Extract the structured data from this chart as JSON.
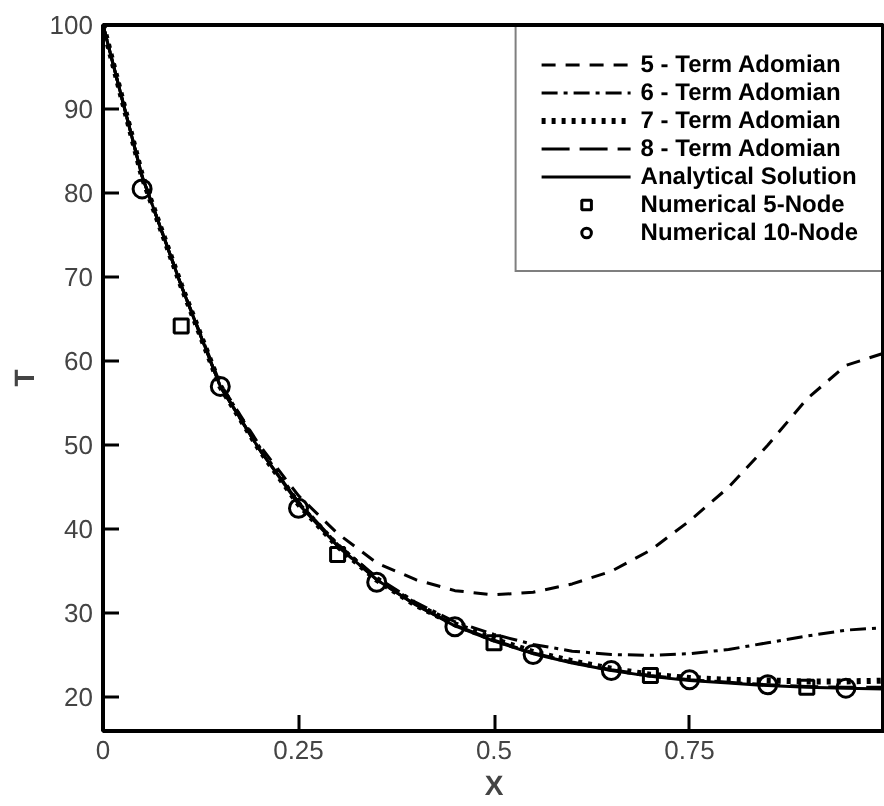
{
  "chart_data": {
    "type": "line",
    "xlabel": "X",
    "ylabel": "T",
    "xlim": [
      0,
      1
    ],
    "ylim": [
      16,
      100
    ],
    "xticks": [
      0,
      0.25,
      0.5,
      0.75
    ],
    "yticks": [
      20,
      30,
      40,
      50,
      60,
      70,
      80,
      90,
      100
    ],
    "grid": false,
    "legend": "top right",
    "series": [
      {
        "name": "5 - Term Adomian",
        "color": "#000000",
        "line_style": "dashed",
        "marker": "none",
        "x": [
          0,
          0.05,
          0.1,
          0.15,
          0.2,
          0.25,
          0.3,
          0.35,
          0.4,
          0.45,
          0.5,
          0.55,
          0.6,
          0.65,
          0.7,
          0.75,
          0.8,
          0.85,
          0.9,
          0.95,
          1
        ],
        "values": [
          100,
          82,
          69,
          57.3,
          50,
          44,
          39.5,
          36,
          34,
          32.7,
          32.2,
          32.5,
          33.5,
          35,
          37.5,
          41,
          45,
          50,
          55.5,
          59.5,
          61
        ]
      },
      {
        "name": "6 - Term Adomian",
        "color": "#000000",
        "line_style": "dashdot",
        "marker": "none",
        "x": [
          0,
          0.05,
          0.1,
          0.15,
          0.2,
          0.25,
          0.3,
          0.35,
          0.4,
          0.45,
          0.5,
          0.55,
          0.6,
          0.65,
          0.7,
          0.75,
          0.8,
          0.85,
          0.9,
          0.95,
          1
        ],
        "values": [
          100,
          82,
          69,
          57,
          49.5,
          43.2,
          38.2,
          34.3,
          31.3,
          29,
          27.5,
          26.3,
          25.5,
          25.1,
          25,
          25.2,
          25.7,
          26.5,
          27.3,
          28,
          28.3
        ]
      },
      {
        "name": "7 - Term Adomian",
        "color": "#000000",
        "line_style": "dotted",
        "marker": "none",
        "x": [
          0,
          0.05,
          0.1,
          0.15,
          0.2,
          0.25,
          0.3,
          0.35,
          0.4,
          0.45,
          0.5,
          0.55,
          0.6,
          0.65,
          0.7,
          0.75,
          0.8,
          0.85,
          0.9,
          0.95,
          1
        ],
        "values": [
          100,
          82,
          69,
          57,
          49.5,
          43,
          38,
          34,
          31,
          28.7,
          26.9,
          25.4,
          24.3,
          23.4,
          22.7,
          22.3,
          22.1,
          22,
          21.9,
          21.9,
          22
        ]
      },
      {
        "name": "8 - Term Adomian",
        "color": "#000000",
        "line_style": "longdash",
        "marker": "none",
        "x": [
          0,
          0.05,
          0.1,
          0.15,
          0.2,
          0.25,
          0.3,
          0.35,
          0.4,
          0.45,
          0.5,
          0.55,
          0.6,
          0.65,
          0.7,
          0.75,
          0.8,
          0.85,
          0.9,
          0.95,
          1
        ],
        "values": [
          100,
          82,
          69,
          57,
          49.5,
          43.2,
          38,
          34,
          31,
          28.6,
          26.8,
          25.3,
          24.2,
          23.3,
          22.6,
          22.1,
          21.8,
          21.5,
          21.3,
          21.2,
          21.2
        ]
      },
      {
        "name": "Analytical Solution",
        "color": "#000000",
        "line_style": "solid",
        "marker": "none",
        "x": [
          0,
          0.05,
          0.1,
          0.15,
          0.2,
          0.25,
          0.3,
          0.35,
          0.4,
          0.45,
          0.5,
          0.55,
          0.6,
          0.65,
          0.7,
          0.75,
          0.8,
          0.85,
          0.9,
          0.95,
          1
        ],
        "values": [
          100,
          82,
          69,
          57,
          49.5,
          43,
          38,
          34,
          31,
          28.5,
          26.7,
          25.2,
          24.1,
          23.2,
          22.5,
          22,
          21.7,
          21.4,
          21.2,
          21.1,
          21
        ]
      },
      {
        "name": "Numerical 5-Node",
        "type": "scatter",
        "color": "#000000",
        "marker": "square",
        "x": [
          0.1,
          0.3,
          0.5,
          0.7,
          0.9
        ],
        "values": [
          64.2,
          37,
          26.5,
          22.6,
          21.2
        ]
      },
      {
        "name": "Numerical 10-Node",
        "type": "scatter",
        "color": "#000000",
        "marker": "circle",
        "x": [
          0.05,
          0.15,
          0.25,
          0.35,
          0.45,
          0.55,
          0.65,
          0.75,
          0.85,
          0.95
        ],
        "values": [
          80.5,
          57,
          42.5,
          33.7,
          28.4,
          25.1,
          23.2,
          22.1,
          21.5,
          21.1
        ]
      }
    ]
  }
}
